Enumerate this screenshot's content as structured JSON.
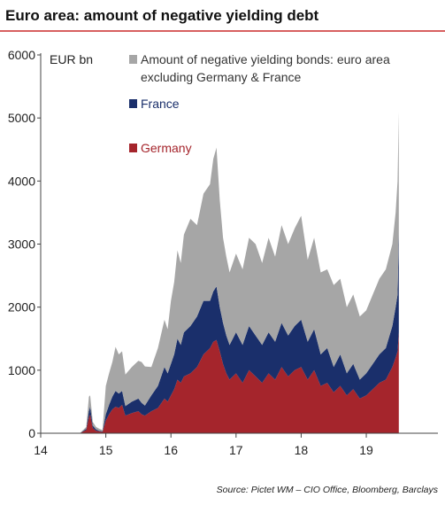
{
  "chart_data": {
    "type": "area",
    "stacked": true,
    "title": "Euro area: amount of negative yielding debt",
    "unit_label": "EUR bn",
    "source": "Source: Pictet WM – CIO Office, Bloomberg, Barclays",
    "xlabel": "",
    "ylabel": "",
    "ylim": [
      0,
      6000
    ],
    "xlim": [
      14,
      20.1
    ],
    "y_ticks": [
      "0",
      "1000",
      "2000",
      "3000",
      "4000",
      "5000",
      "6000"
    ],
    "x_ticks": [
      {
        "value": 14,
        "label": "14"
      },
      {
        "value": 15,
        "label": "15"
      },
      {
        "value": 16,
        "label": "16"
      },
      {
        "value": 17,
        "label": "17"
      },
      {
        "value": 18,
        "label": "18"
      },
      {
        "value": 19,
        "label": "19"
      }
    ],
    "grid": false,
    "legend_position": "top-right",
    "x": [
      14.6,
      14.7,
      14.74,
      14.76,
      14.8,
      14.85,
      14.9,
      14.95,
      15.0,
      15.05,
      15.1,
      15.15,
      15.2,
      15.25,
      15.3,
      15.4,
      15.5,
      15.55,
      15.6,
      15.7,
      15.8,
      15.9,
      15.95,
      16.0,
      16.05,
      16.1,
      16.15,
      16.2,
      16.3,
      16.4,
      16.5,
      16.6,
      16.65,
      16.7,
      16.75,
      16.8,
      16.85,
      16.9,
      17.0,
      17.1,
      17.2,
      17.3,
      17.4,
      17.5,
      17.6,
      17.7,
      17.8,
      17.9,
      18.0,
      18.1,
      18.2,
      18.3,
      18.4,
      18.5,
      18.6,
      18.7,
      18.8,
      18.9,
      19.0,
      19.1,
      19.2,
      19.3,
      19.4,
      19.45,
      19.48,
      19.5
    ],
    "series": [
      {
        "name": "Germany",
        "color": "#a5252c",
        "values": [
          0,
          50,
          250,
          300,
          80,
          40,
          30,
          20,
          200,
          300,
          380,
          420,
          400,
          450,
          280,
          320,
          350,
          300,
          280,
          350,
          400,
          550,
          500,
          600,
          700,
          850,
          800,
          900,
          950,
          1050,
          1250,
          1350,
          1450,
          1480,
          1300,
          1100,
          950,
          850,
          950,
          800,
          1000,
          900,
          800,
          950,
          850,
          1050,
          900,
          1000,
          1050,
          850,
          1000,
          750,
          800,
          650,
          750,
          600,
          700,
          550,
          600,
          700,
          800,
          850,
          1050,
          1200,
          1300,
          1600
        ]
      },
      {
        "name": "France",
        "color": "#1a2f6b",
        "values": [
          0,
          20,
          100,
          120,
          40,
          20,
          10,
          10,
          100,
          150,
          200,
          250,
          230,
          220,
          150,
          180,
          200,
          180,
          160,
          250,
          350,
          500,
          450,
          500,
          550,
          650,
          600,
          700,
          750,
          800,
          850,
          750,
          800,
          850,
          700,
          650,
          600,
          550,
          650,
          600,
          700,
          650,
          600,
          650,
          600,
          700,
          650,
          700,
          750,
          600,
          650,
          500,
          550,
          400,
          500,
          350,
          400,
          300,
          350,
          400,
          450,
          500,
          650,
          800,
          900,
          1600
        ]
      },
      {
        "name": "Amount of negative yielding bonds: euro area excluding Germany & France",
        "color": "#a6a6a6",
        "values": [
          0,
          30,
          230,
          180,
          60,
          40,
          30,
          20,
          450,
          500,
          550,
          700,
          620,
          630,
          500,
          550,
          600,
          650,
          620,
          450,
          600,
          750,
          700,
          1000,
          1150,
          1400,
          1300,
          1550,
          1700,
          1450,
          1700,
          1850,
          2100,
          2200,
          1700,
          1350,
          1250,
          1150,
          1250,
          1200,
          1400,
          1450,
          1300,
          1500,
          1350,
          1550,
          1450,
          1550,
          1650,
          1300,
          1450,
          1300,
          1250,
          1300,
          1200,
          1050,
          1100,
          1000,
          1000,
          1100,
          1200,
          1250,
          1300,
          1500,
          1800,
          1900
        ]
      }
    ],
    "legend": [
      {
        "label_lines": [
          "Amount of negative yielding bonds: euro area",
          "excluding Germany & France"
        ],
        "color": "#a6a6a6",
        "text_color": "#333333"
      },
      {
        "label_lines": [
          "France"
        ],
        "color": "#1a2f6b",
        "text_color": "#1a2f6b"
      },
      {
        "label_lines": [
          "Germany"
        ],
        "color": "#a5252c",
        "text_color": "#a5252c"
      }
    ]
  }
}
